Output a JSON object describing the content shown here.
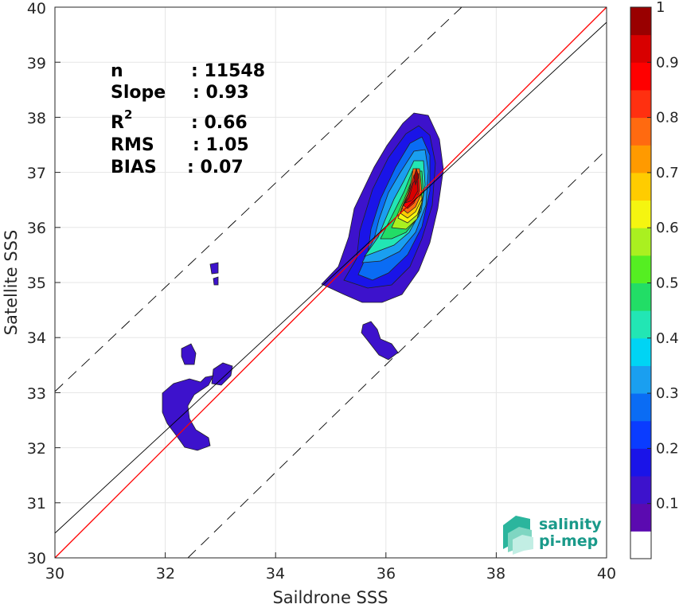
{
  "chart_data": {
    "type": "contour",
    "xlabel": "Saildrone SSS",
    "ylabel": "Satellite SSS",
    "xlim": [
      30,
      40
    ],
    "ylim": [
      30,
      40
    ],
    "xticks": [
      "30",
      "32",
      "34",
      "36",
      "38",
      "40"
    ],
    "yticks": [
      "30",
      "31",
      "32",
      "33",
      "34",
      "35",
      "36",
      "37",
      "38",
      "39",
      "40"
    ],
    "grid": true,
    "stats": {
      "n_label": "n",
      "n_value": ": 11548",
      "slope_label": "Slope",
      "slope_value": ": 0.93",
      "r2_label": "R",
      "r2_sup": "2",
      "r2_value": ": 0.66",
      "rms_label": "RMS",
      "rms_value": ": 1.05",
      "bias_label": "BIAS",
      "bias_value": ": 0.07"
    },
    "lines": {
      "identity": {
        "color": "#ff0000",
        "x": [
          30,
          40
        ],
        "y": [
          30,
          40
        ]
      },
      "regression": {
        "color": "#000000",
        "slope": 0.93,
        "intercept": 2.56
      },
      "upper_bound": {
        "style": "dashed",
        "offset": 3.15
      },
      "lower_bound": {
        "style": "dashed",
        "offset": -2.4
      }
    },
    "density_peak": {
      "x": 36.5,
      "y": 36.8
    },
    "colorbar": {
      "ticks": [
        "0.1",
        "0.2",
        "0.3",
        "0.4",
        "0.5",
        "0.6",
        "0.7",
        "0.8",
        "0.9",
        "1"
      ],
      "range": [
        0,
        1
      ],
      "colors": [
        "#ffffff",
        "#5b0ab0",
        "#3d12cc",
        "#1a14e8",
        "#0a3cff",
        "#0a6cf4",
        "#1a9ff0",
        "#00d4f4",
        "#22e6b4",
        "#22dd66",
        "#55ee22",
        "#aaf020",
        "#f5f510",
        "#ffcc00",
        "#ff9a00",
        "#ff6a10",
        "#ff3010",
        "#ff0000",
        "#d80000",
        "#990000"
      ]
    }
  },
  "logo": {
    "line1": "salinity",
    "line2": "pi-mep"
  }
}
